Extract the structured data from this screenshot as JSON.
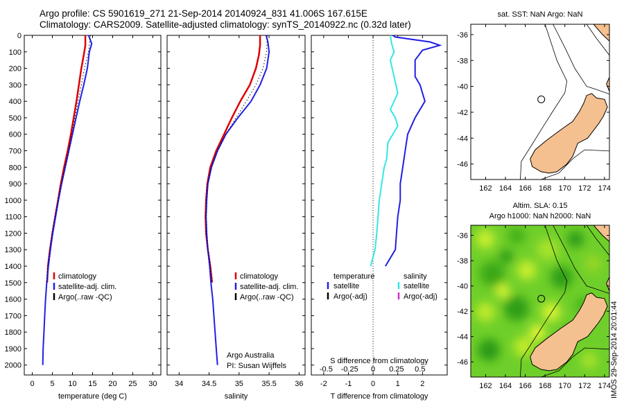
{
  "header": {
    "line1": "Argo profile: CS 5901619_271 21-Sep-2014 20140924_831 41.006S 167.615E",
    "line2": "Climatology: CARS2009. Satellite-adjusted climatology: synTS_20140922.nc (0.32d later)"
  },
  "stamp": "IMOS 29-Sep-2014 20:01:44",
  "colors": {
    "climatology": "#dd0000",
    "satellite": "#1e1ee6",
    "argo": "#000000",
    "salinity_satellite": "#33e6e6",
    "salinity_argo": "#cc33cc",
    "land": "#f5c08f",
    "sla_field": "#6fcf2a"
  },
  "chart_data": [
    {
      "id": "temperature",
      "type": "line",
      "xlabel": "temperature (deg C)",
      "xticks": [
        0,
        5,
        10,
        15,
        20,
        25,
        30
      ],
      "xlim": [
        -2,
        32
      ],
      "yticks": [
        0,
        100,
        200,
        300,
        400,
        500,
        600,
        700,
        800,
        900,
        1000,
        1100,
        1200,
        1300,
        1400,
        1500,
        1600,
        1700,
        1800,
        1900,
        2000
      ],
      "ylim": [
        0,
        2060
      ],
      "series": [
        {
          "name": "climatology",
          "color": "#dd0000",
          "width": 2.5,
          "points": [
            [
              13.2,
              0
            ],
            [
              13.2,
              60
            ],
            [
              12.8,
              120
            ],
            [
              12.2,
              200
            ],
            [
              11.6,
              300
            ],
            [
              11.0,
              400
            ],
            [
              10.3,
              500
            ],
            [
              9.6,
              600
            ],
            [
              8.8,
              700
            ],
            [
              7.9,
              800
            ],
            [
              7.1,
              900
            ],
            [
              6.4,
              1000
            ],
            [
              5.7,
              1100
            ],
            [
              5.0,
              1200
            ],
            [
              4.4,
              1300
            ],
            [
              3.9,
              1400
            ],
            [
              3.7,
              1500
            ]
          ]
        },
        {
          "name": "satellite-adj. clim.",
          "color": "#1e1ee6",
          "width": 2,
          "points": [
            [
              14.0,
              0
            ],
            [
              14.8,
              50
            ],
            [
              14.2,
              100
            ],
            [
              13.7,
              200
            ],
            [
              12.8,
              300
            ],
            [
              11.8,
              400
            ],
            [
              10.9,
              500
            ],
            [
              10.0,
              600
            ],
            [
              9.1,
              700
            ],
            [
              8.2,
              800
            ],
            [
              7.3,
              900
            ],
            [
              6.5,
              1000
            ],
            [
              5.8,
              1100
            ],
            [
              5.1,
              1200
            ],
            [
              4.5,
              1300
            ],
            [
              4.0,
              1400
            ],
            [
              3.6,
              1500
            ],
            [
              3.3,
              1600
            ],
            [
              3.1,
              1700
            ],
            [
              2.9,
              1800
            ],
            [
              2.7,
              1900
            ],
            [
              2.6,
              2000
            ]
          ]
        },
        {
          "name": "Argo(..raw -QC)",
          "color": "#000000",
          "width": 1,
          "dotted": true,
          "points": [
            [
              14.5,
              0
            ],
            [
              14.0,
              100
            ],
            [
              13.0,
              200
            ],
            [
              12.2,
              300
            ],
            [
              11.4,
              400
            ],
            [
              10.6,
              500
            ],
            [
              9.8,
              600
            ],
            [
              9.0,
              700
            ],
            [
              8.1,
              800
            ],
            [
              7.2,
              900
            ],
            [
              6.4,
              1000
            ],
            [
              5.6,
              1100
            ],
            [
              4.9,
              1200
            ],
            [
              4.3,
              1300
            ],
            [
              3.8,
              1400
            ],
            [
              3.6,
              1500
            ]
          ]
        }
      ],
      "legend": [
        {
          "label": "climatology",
          "color": "#dd0000"
        },
        {
          "label": "satellite-adj. clim.",
          "color": "#1e1ee6"
        },
        {
          "label": "Argo(..raw -QC)",
          "color": "#000000"
        }
      ]
    },
    {
      "id": "salinity",
      "type": "line",
      "xlabel": "salinity",
      "xticks": [
        34,
        34.5,
        35,
        35.5,
        36
      ],
      "xlim": [
        33.8,
        36.1
      ],
      "ylim": [
        0,
        2060
      ],
      "series": [
        {
          "name": "climatology",
          "color": "#dd0000",
          "width": 2.5,
          "points": [
            [
              35.35,
              0
            ],
            [
              35.35,
              60
            ],
            [
              35.33,
              120
            ],
            [
              35.28,
              200
            ],
            [
              35.18,
              300
            ],
            [
              35.02,
              400
            ],
            [
              34.88,
              500
            ],
            [
              34.75,
              600
            ],
            [
              34.62,
              700
            ],
            [
              34.52,
              800
            ],
            [
              34.47,
              900
            ],
            [
              34.45,
              1000
            ],
            [
              34.44,
              1100
            ],
            [
              34.45,
              1200
            ],
            [
              34.48,
              1300
            ],
            [
              34.52,
              1400
            ],
            [
              34.55,
              1500
            ]
          ]
        },
        {
          "name": "satellite-adj. clim.",
          "color": "#1e1ee6",
          "width": 2,
          "points": [
            [
              35.45,
              0
            ],
            [
              35.48,
              40
            ],
            [
              35.5,
              100
            ],
            [
              35.46,
              200
            ],
            [
              35.35,
              300
            ],
            [
              35.2,
              400
            ],
            [
              34.98,
              500
            ],
            [
              34.78,
              600
            ],
            [
              34.64,
              700
            ],
            [
              34.54,
              800
            ],
            [
              34.48,
              900
            ],
            [
              34.46,
              1000
            ],
            [
              34.45,
              1100
            ],
            [
              34.46,
              1200
            ],
            [
              34.48,
              1300
            ],
            [
              34.51,
              1400
            ],
            [
              34.53,
              1500
            ],
            [
              34.56,
              1600
            ],
            [
              34.58,
              1700
            ],
            [
              34.6,
              1800
            ],
            [
              34.62,
              1900
            ],
            [
              34.64,
              2000
            ]
          ]
        },
        {
          "name": "Argo(..raw -QC)",
          "color": "#000000",
          "width": 1,
          "dotted": true,
          "points": [
            [
              35.47,
              0
            ],
            [
              35.46,
              100
            ],
            [
              35.4,
              200
            ],
            [
              35.28,
              300
            ],
            [
              35.12,
              400
            ],
            [
              34.95,
              500
            ],
            [
              34.78,
              600
            ],
            [
              34.64,
              700
            ],
            [
              34.54,
              800
            ],
            [
              34.48,
              900
            ],
            [
              34.46,
              1000
            ],
            [
              34.45,
              1100
            ],
            [
              34.46,
              1200
            ],
            [
              34.48,
              1300
            ],
            [
              34.52,
              1400
            ],
            [
              34.55,
              1500
            ]
          ]
        }
      ],
      "legend": [
        {
          "label": "climatology",
          "color": "#dd0000"
        },
        {
          "label": "satellite-adj. clim.",
          "color": "#1e1ee6"
        },
        {
          "label": "Argo(..raw -QC)",
          "color": "#000000"
        }
      ],
      "annotation": [
        "Argo Australia",
        "PI: Susan Wijffels"
      ]
    },
    {
      "id": "difference",
      "type": "line",
      "xlabel": "T difference from climatology",
      "xlabel_top": "S difference from climatology",
      "xticks": [
        -2,
        -1,
        0,
        1,
        2
      ],
      "xlim": [
        -2.5,
        3.0
      ],
      "sticks": [
        {
          "label": "-0.5",
          "value": -1.9
        },
        {
          "label": "-0.25",
          "value": -0.95
        },
        {
          "label": "0",
          "value": 0
        },
        {
          "label": "0.25",
          "value": 0.95
        },
        {
          "label": "0.5",
          "value": 1.9
        }
      ],
      "zero_line": true,
      "ylim": [
        0,
        2060
      ],
      "series": [
        {
          "name": "temperature satellite",
          "color": "#1e1ee6",
          "width": 2,
          "points": [
            [
              0.8,
              0
            ],
            [
              0.9,
              10
            ],
            [
              2.3,
              40
            ],
            [
              2.7,
              60
            ],
            [
              2.0,
              90
            ],
            [
              1.7,
              150
            ],
            [
              1.7,
              250
            ],
            [
              1.9,
              300
            ],
            [
              2.1,
              400
            ],
            [
              1.7,
              500
            ],
            [
              1.4,
              600
            ],
            [
              1.3,
              700
            ],
            [
              1.2,
              800
            ],
            [
              1.1,
              900
            ],
            [
              1.1,
              1000
            ],
            [
              1.0,
              1100
            ],
            [
              0.95,
              1200
            ],
            [
              0.9,
              1300
            ],
            [
              0.5,
              1400
            ]
          ]
        },
        {
          "name": "salinity satellite",
          "color": "#33e6e6",
          "width": 2,
          "points": [
            [
              0.7,
              0
            ],
            [
              0.75,
              50
            ],
            [
              0.85,
              100
            ],
            [
              0.7,
              150
            ],
            [
              0.85,
              250
            ],
            [
              1.0,
              350
            ],
            [
              0.7,
              450
            ],
            [
              0.9,
              500
            ],
            [
              1.0,
              550
            ],
            [
              0.8,
              600
            ],
            [
              0.6,
              650
            ],
            [
              0.55,
              750
            ],
            [
              0.45,
              800
            ],
            [
              0.35,
              900
            ],
            [
              0.25,
              1000
            ],
            [
              0.2,
              1100
            ],
            [
              0.15,
              1200
            ],
            [
              0.08,
              1300
            ],
            [
              -0.1,
              1400
            ]
          ]
        }
      ],
      "legend_temp": [
        "temperature",
        "satellite",
        "Argo(-adj)"
      ],
      "legend_sal": [
        "salinity",
        "satellite",
        "Argo(-adj)"
      ]
    },
    {
      "id": "map-sst",
      "type": "map",
      "title": "sat. SST: NaN Argo: NaN",
      "xticks": [
        162,
        164,
        166,
        168,
        170,
        172,
        174
      ],
      "yticks": [
        -36,
        -38,
        -40,
        -42,
        -44,
        -46
      ],
      "xlim": [
        160.5,
        174.5
      ],
      "ylim": [
        -47.2,
        -35.2
      ],
      "marker": {
        "lon": 167.615,
        "lat": -41.006
      }
    },
    {
      "id": "map-sla",
      "type": "map",
      "title": [
        "Altim. SLA: 0.15",
        "Argo h1000: NaN h2000: NaN"
      ],
      "xticks": [
        162,
        164,
        166,
        168,
        170,
        172,
        174
      ],
      "yticks": [
        -36,
        -38,
        -40,
        -42,
        -44,
        -46
      ],
      "xlim": [
        160.5,
        174.5
      ],
      "ylim": [
        -47.2,
        -35.2
      ],
      "marker": {
        "lon": 167.615,
        "lat": -41.006
      }
    }
  ]
}
